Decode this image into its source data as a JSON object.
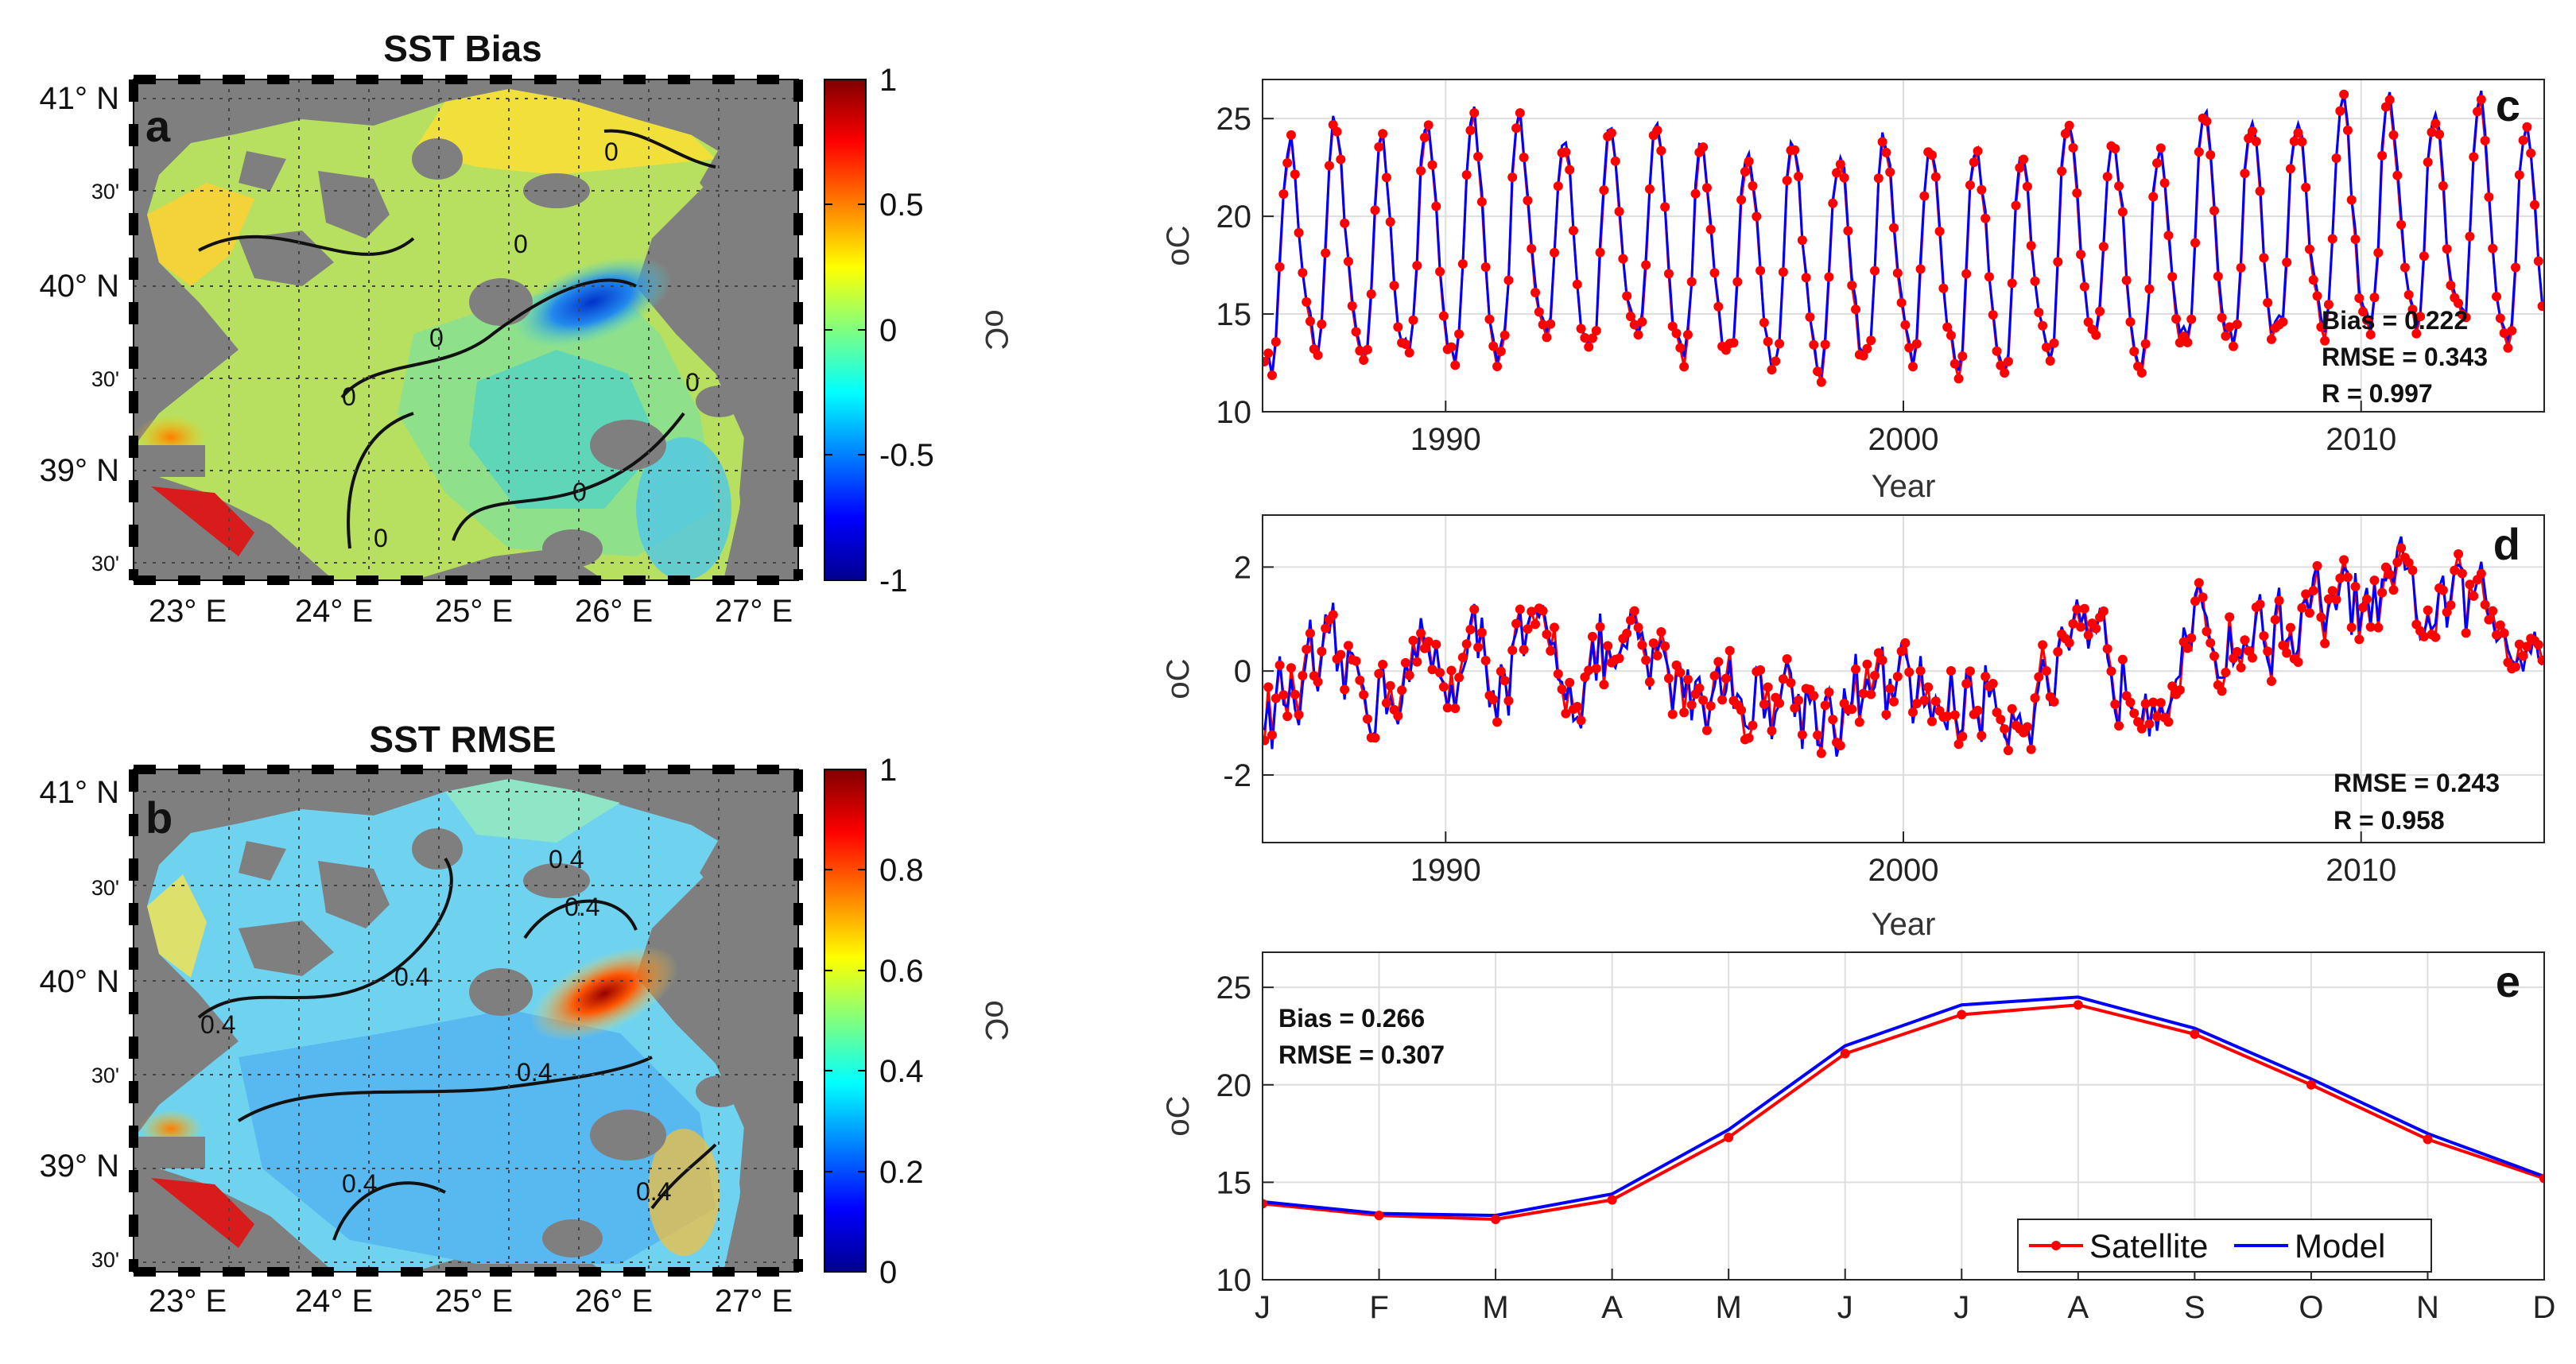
{
  "maps": [
    {
      "title": "SST Bias",
      "label": "a",
      "lat_labels": [
        "41° N",
        "30'",
        "40° N",
        "30'",
        "39° N",
        "30'"
      ],
      "lon_labels": [
        "23° E",
        "24° E",
        "25° E",
        "26° E",
        "27° E"
      ],
      "colorbar": {
        "ticks": [
          "1",
          "0.5",
          "0",
          "-0.5",
          "-1"
        ],
        "unit": "oC",
        "range": [
          -1,
          1
        ]
      },
      "contour_labels": [
        "0",
        "0",
        "0",
        "0",
        "0",
        "0",
        "0"
      ]
    },
    {
      "title": "SST RMSE",
      "label": "b",
      "lat_labels": [
        "41° N",
        "30'",
        "40° N",
        "30'",
        "39° N",
        "30'"
      ],
      "lon_labels": [
        "23° E",
        "24° E",
        "25° E",
        "26° E",
        "27° E"
      ],
      "colorbar": {
        "ticks": [
          "1",
          "0.8",
          "0.6",
          "0.4",
          "0.2",
          "0"
        ],
        "unit": "oC",
        "range": [
          0,
          1
        ]
      },
      "contour_labels": [
        "0.4",
        "0.4",
        "0.4",
        "0.4",
        "0.4",
        "0.4",
        "0.4"
      ]
    }
  ],
  "chart_data": [
    {
      "type": "line",
      "label": "c",
      "xlabel": "Year",
      "ylabel": "oC",
      "xlim": [
        1986,
        2014
      ],
      "ylim": [
        10,
        27
      ],
      "xticks": [
        "1990",
        "2000",
        "2010"
      ],
      "yticks": [
        "10",
        "15",
        "20",
        "25"
      ],
      "series": [
        {
          "name": "Satellite",
          "color": "#ff0000",
          "generator": "monthly seasonal cycle 1986-2013"
        },
        {
          "name": "Model",
          "color": "#0000ff",
          "generator": "monthly seasonal cycle 1986-2013"
        }
      ],
      "stats": [
        "Bias = 0.222",
        "RMSE = 0.343",
        "R =  0.997"
      ]
    },
    {
      "type": "line",
      "label": "d",
      "xlabel": "Year",
      "ylabel": "oC",
      "xlim": [
        1986,
        2014
      ],
      "ylim": [
        -3.3,
        3.0
      ],
      "xticks": [
        "1990",
        "2000",
        "2010"
      ],
      "yticks": [
        "2",
        "0",
        "-2"
      ],
      "series": [
        {
          "name": "Satellite",
          "color": "#ff0000",
          "generator": "monthly anomalies 1986-2013"
        },
        {
          "name": "Model",
          "color": "#0000ff",
          "generator": "monthly anomalies 1986-2013"
        }
      ],
      "stats": [
        "RMSE = 0.243",
        "R =  0.958"
      ]
    },
    {
      "type": "line",
      "label": "e",
      "xlabel": "",
      "ylabel": "oC",
      "categories": [
        "J",
        "F",
        "M",
        "A",
        "M",
        "J",
        "J",
        "A",
        "S",
        "O",
        "N",
        "D"
      ],
      "ylim": [
        10,
        26.8
      ],
      "yticks": [
        "10",
        "15",
        "20",
        "25"
      ],
      "series": [
        {
          "name": "Satellite",
          "color": "#ff0000",
          "values": [
            13.9,
            13.3,
            13.1,
            14.1,
            17.3,
            21.6,
            23.6,
            24.1,
            22.6,
            20.0,
            17.2,
            15.2
          ]
        },
        {
          "name": "Model",
          "color": "#0000ff",
          "values": [
            14.0,
            13.4,
            13.3,
            14.4,
            17.7,
            22.0,
            24.1,
            24.5,
            22.9,
            20.3,
            17.5,
            15.3
          ]
        }
      ],
      "stats": [
        "Bias = 0.266",
        "RMSE = 0.307"
      ],
      "legend": [
        "Satellite",
        "Model"
      ]
    }
  ]
}
